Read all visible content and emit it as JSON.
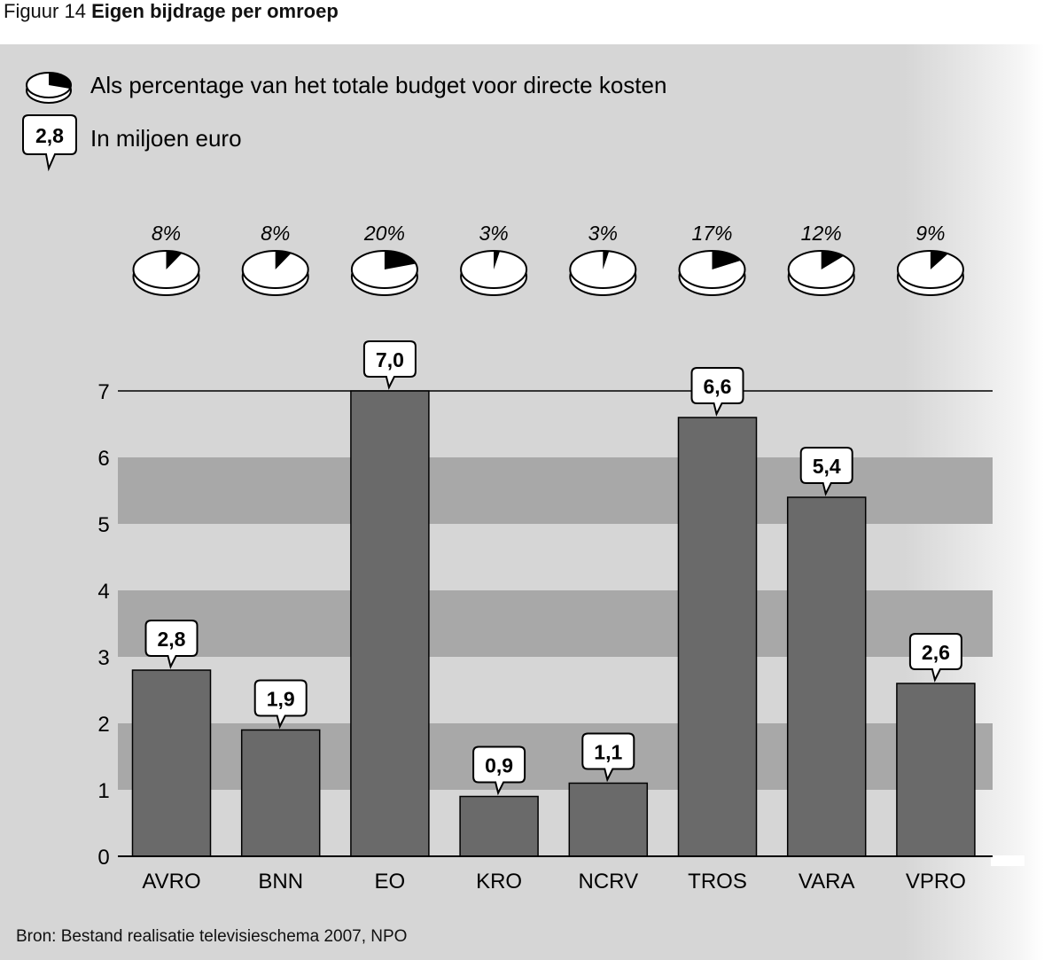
{
  "figure": {
    "prefix": "Figuur 14",
    "title": "Eigen bijdrage per omroep"
  },
  "legend": {
    "pie_label": "Als percentage van het totale budget voor directe kosten",
    "callout_example": "2,8",
    "callout_label": "In miljoen euro"
  },
  "chart_data": {
    "type": "bar",
    "title": "Eigen bijdrage per omroep",
    "categories": [
      "AVRO",
      "BNN",
      "EO",
      "KRO",
      "NCRV",
      "TROS",
      "VARA",
      "VPRO"
    ],
    "values": [
      2.8,
      1.9,
      7.0,
      0.9,
      1.1,
      6.6,
      5.4,
      2.6
    ],
    "value_labels": [
      "2,8",
      "1,9",
      "7,0",
      "0,9",
      "1,1",
      "6,6",
      "5,4",
      "2,6"
    ],
    "percentages": [
      8,
      8,
      20,
      3,
      3,
      17,
      12,
      9
    ],
    "percentage_labels": [
      "8%",
      "8%",
      "20%",
      "3%",
      "3%",
      "17%",
      "12%",
      "9%"
    ],
    "yticks": [
      0,
      1,
      2,
      3,
      4,
      5,
      6,
      7
    ],
    "ylim": [
      0,
      7
    ],
    "grid": "alternating horizontal bands",
    "colors": {
      "bar": "#6a6a6a",
      "band": "#a8a8a8",
      "panel": "#d6d6d6",
      "pie_slice": "#000000",
      "pie_face": "#ffffff"
    }
  },
  "source": "Bron: Bestand realisatie televisieschema 2007, NPO"
}
